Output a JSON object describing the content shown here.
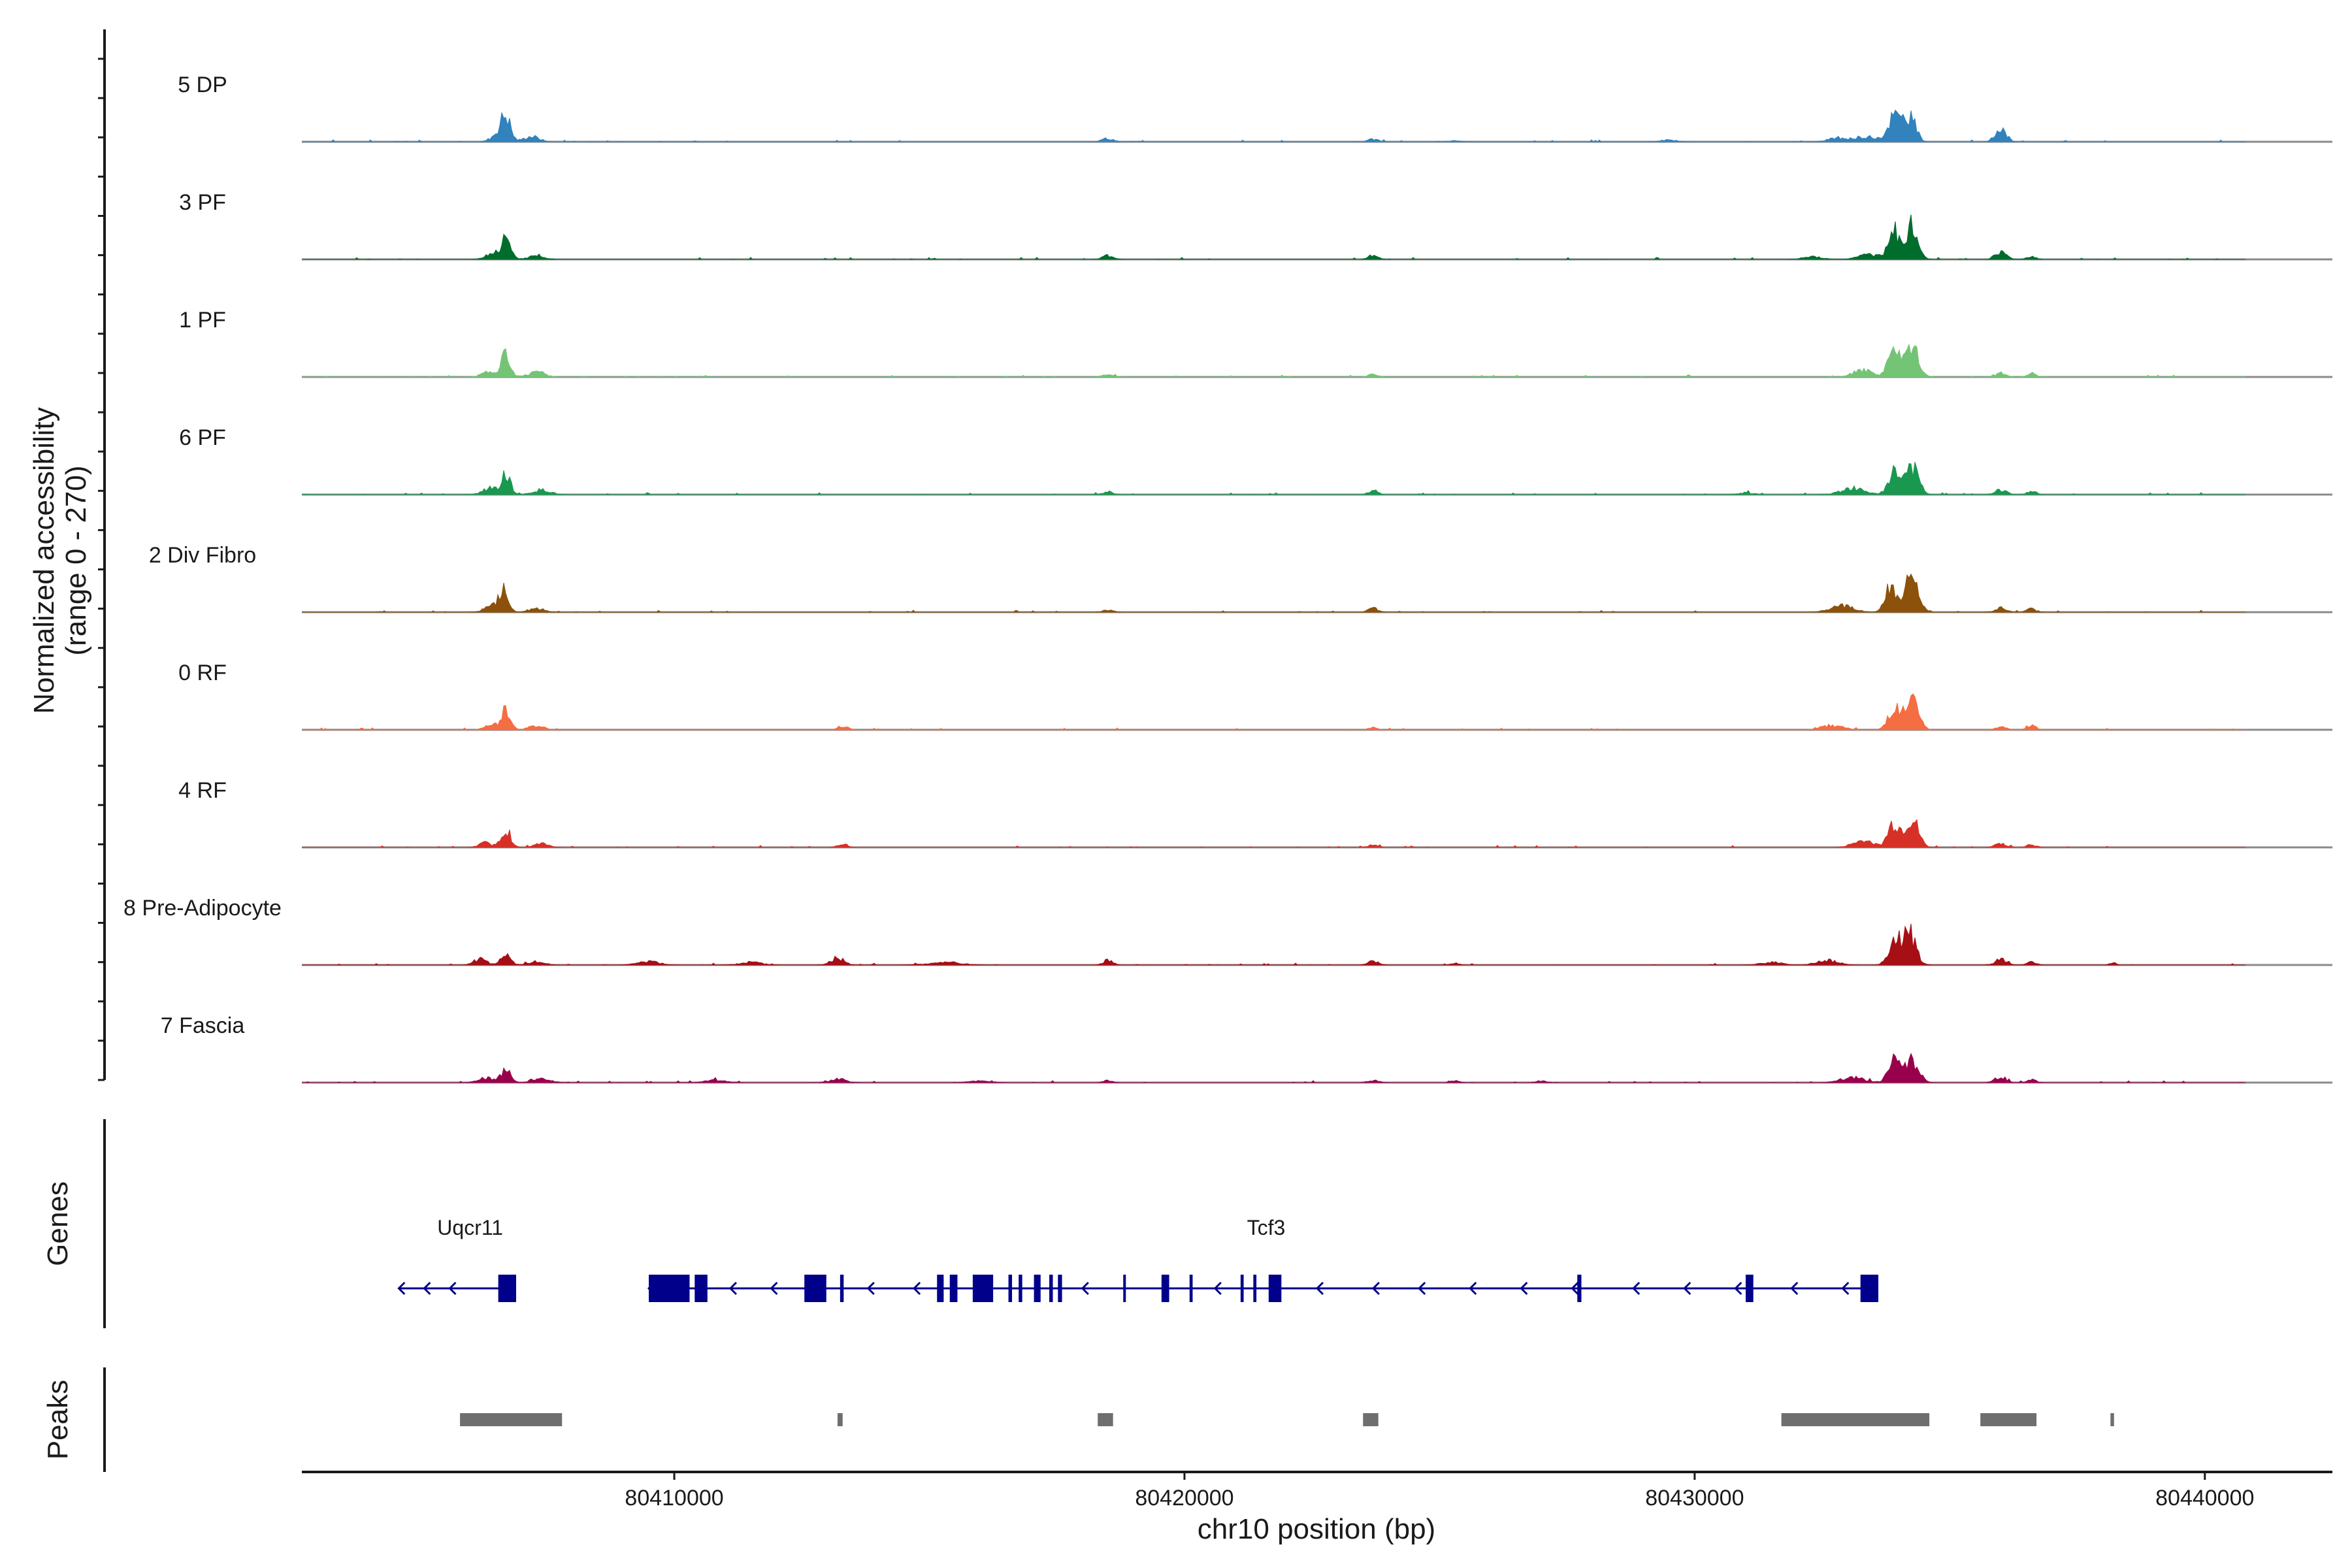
{
  "chart_data": {
    "type": "area",
    "title": "",
    "ylabel_line1": "Normalized accessibility",
    "ylabel_line2": "(range 0 - 270)",
    "yrange": [
      0,
      270
    ],
    "genes_label": "Genes",
    "peaks_label": "Peaks",
    "xlabel": "chr10 position (bp)",
    "xlim": [
      80402700,
      80442500
    ],
    "xticks": [
      80410000,
      80420000,
      80430000,
      80440000
    ],
    "xtick_labels": [
      "80410000",
      "80420000",
      "80430000",
      "80440000"
    ],
    "track_start": 80402700,
    "track_end": 80440800,
    "tracks": [
      {
        "name": "5 DP",
        "color": "#3182bd",
        "peaks": [
          [
            80406700,
            52,
            90
          ],
          [
            80406550,
            18,
            130
          ],
          [
            80407200,
            12,
            150
          ],
          [
            80418500,
            7,
            110
          ],
          [
            80423700,
            6,
            90
          ],
          [
            80433400,
            10,
            250
          ],
          [
            80433900,
            54,
            110
          ],
          [
            80434200,
            60,
            120
          ],
          [
            80432800,
            8,
            180
          ],
          [
            80436000,
            26,
            110
          ],
          [
            80429500,
            4,
            160
          ],
          [
            80425300,
            3,
            120
          ]
        ]
      },
      {
        "name": "3 PF",
        "color": "#006d2c",
        "peaks": [
          [
            80406700,
            42,
            90
          ],
          [
            80406450,
            14,
            140
          ],
          [
            80407300,
            8,
            160
          ],
          [
            80418500,
            8,
            100
          ],
          [
            80423700,
            10,
            90
          ],
          [
            80432300,
            6,
            180
          ],
          [
            80433400,
            10,
            200
          ],
          [
            80433900,
            60,
            110
          ],
          [
            80434250,
            72,
            120
          ],
          [
            80436000,
            16,
            110
          ],
          [
            80436600,
            6,
            90
          ]
        ]
      },
      {
        "name": "1 PF",
        "color": "#74c476",
        "peaks": [
          [
            80406700,
            46,
            90
          ],
          [
            80406400,
            12,
            140
          ],
          [
            80407300,
            10,
            160
          ],
          [
            80418500,
            6,
            100
          ],
          [
            80423700,
            6,
            90
          ],
          [
            80433300,
            16,
            180
          ],
          [
            80433900,
            54,
            110
          ],
          [
            80434250,
            70,
            130
          ],
          [
            80436000,
            8,
            110
          ],
          [
            80436600,
            8,
            90
          ]
        ]
      },
      {
        "name": "6 PF",
        "color": "#1a9850",
        "peaks": [
          [
            80406700,
            40,
            90
          ],
          [
            80406400,
            14,
            150
          ],
          [
            80407400,
            10,
            170
          ],
          [
            80418500,
            6,
            100
          ],
          [
            80423700,
            9,
            90
          ],
          [
            80433100,
            14,
            220
          ],
          [
            80433900,
            48,
            110
          ],
          [
            80434250,
            60,
            130
          ],
          [
            80436000,
            10,
            110
          ],
          [
            80436600,
            6,
            90
          ],
          [
            80431000,
            4,
            150
          ]
        ]
      },
      {
        "name": "2 Div Fibro",
        "color": "#8c510a",
        "peaks": [
          [
            80406650,
            44,
            90
          ],
          [
            80406400,
            12,
            140
          ],
          [
            80407300,
            8,
            160
          ],
          [
            80418500,
            5,
            100
          ],
          [
            80423700,
            10,
            90
          ],
          [
            80432900,
            14,
            220
          ],
          [
            80433850,
            58,
            110
          ],
          [
            80434250,
            74,
            130
          ],
          [
            80436000,
            10,
            110
          ],
          [
            80436600,
            8,
            90
          ]
        ]
      },
      {
        "name": "0 RF",
        "color": "#f46d43",
        "peaks": [
          [
            80406700,
            44,
            90
          ],
          [
            80406400,
            10,
            140
          ],
          [
            80407300,
            8,
            160
          ],
          [
            80413300,
            8,
            100
          ],
          [
            80423700,
            5,
            90
          ],
          [
            80432700,
            10,
            200
          ],
          [
            80433900,
            48,
            110
          ],
          [
            80434250,
            62,
            130
          ],
          [
            80436000,
            6,
            110
          ],
          [
            80436600,
            9,
            90
          ]
        ]
      },
      {
        "name": "4 RF",
        "color": "#d73027",
        "peaks": [
          [
            80406700,
            42,
            90
          ],
          [
            80406300,
            10,
            120
          ],
          [
            80407400,
            8,
            140
          ],
          [
            80413300,
            6,
            100
          ],
          [
            80423700,
            7,
            90
          ],
          [
            80433300,
            14,
            200
          ],
          [
            80433900,
            52,
            110
          ],
          [
            80434250,
            62,
            130
          ],
          [
            80436000,
            9,
            110
          ],
          [
            80436600,
            6,
            90
          ]
        ]
      },
      {
        "name": "8 Pre-Adipocyte",
        "color": "#a50f15",
        "peaks": [
          [
            80406700,
            28,
            90
          ],
          [
            80406200,
            14,
            120
          ],
          [
            80407300,
            8,
            150
          ],
          [
            80409500,
            8,
            200
          ],
          [
            80411500,
            6,
            200
          ],
          [
            80413200,
            16,
            120
          ],
          [
            80415300,
            6,
            300
          ],
          [
            80418500,
            10,
            90
          ],
          [
            80423700,
            8,
            100
          ],
          [
            80425300,
            4,
            80
          ],
          [
            80431500,
            6,
            200
          ],
          [
            80432600,
            10,
            200
          ],
          [
            80433900,
            50,
            110
          ],
          [
            80434200,
            70,
            130
          ],
          [
            80436000,
            12,
            110
          ],
          [
            80436600,
            6,
            90
          ],
          [
            80438200,
            5,
            60
          ]
        ]
      },
      {
        "name": "7 Fascia",
        "color": "#99004c",
        "peaks": [
          [
            80406700,
            30,
            90
          ],
          [
            80406300,
            10,
            150
          ],
          [
            80407400,
            8,
            170
          ],
          [
            80410800,
            5,
            200
          ],
          [
            80413200,
            8,
            150
          ],
          [
            80416000,
            4,
            200
          ],
          [
            80418500,
            5,
            90
          ],
          [
            80423700,
            5,
            100
          ],
          [
            80425300,
            4,
            80
          ],
          [
            80427000,
            4,
            100
          ],
          [
            80433100,
            12,
            220
          ],
          [
            80433900,
            48,
            110
          ],
          [
            80434250,
            52,
            130
          ],
          [
            80436000,
            12,
            110
          ],
          [
            80436600,
            6,
            90
          ]
        ]
      }
    ],
    "genes": [
      {
        "name": "Uqcr11",
        "label_x": 80406000,
        "start": 80404600,
        "end": 80406900,
        "strand": "-",
        "exons": [
          [
            80406550,
            80406900
          ]
        ]
      },
      {
        "name": "Tcf3",
        "label_x": 80421600,
        "start": 80409500,
        "end": 80433600,
        "strand": "-",
        "exons": [
          [
            80409500,
            80410300
          ],
          [
            80410400,
            80410650
          ],
          [
            80412550,
            80412980
          ],
          [
            80413250,
            80413320
          ],
          [
            80415150,
            80415280
          ],
          [
            80415400,
            80415550
          ],
          [
            80415850,
            80416250
          ],
          [
            80416550,
            80416620
          ],
          [
            80416750,
            80416820
          ],
          [
            80417050,
            80417180
          ],
          [
            80417350,
            80417420
          ],
          [
            80417520,
            80417600
          ],
          [
            80418800,
            80418850
          ],
          [
            80419550,
            80419700
          ],
          [
            80420100,
            80420160
          ],
          [
            80421100,
            80421160
          ],
          [
            80421350,
            80421410
          ],
          [
            80421650,
            80421900
          ],
          [
            80427700,
            80427780
          ],
          [
            80431000,
            80431150
          ],
          [
            80433250,
            80433600
          ]
        ],
        "arrows": [
          80411100,
          80411900,
          80413800,
          80414700,
          80418000,
          80420600,
          80422600,
          80423700,
          80424600,
          80425600,
          80426600,
          80427600,
          80428800,
          80429800,
          80430800,
          80431900,
          80432900
        ]
      }
    ],
    "uqcr11_arrows": [
      80405100,
      80405600
    ],
    "peaks": [
      [
        80405800,
        80407800
      ],
      [
        80413200,
        80413300
      ],
      [
        80418300,
        80418600
      ],
      [
        80423500,
        80423800
      ],
      [
        80431700,
        80434600
      ],
      [
        80435600,
        80436700
      ],
      [
        80438150,
        80438220
      ]
    ]
  },
  "colors": {
    "gene": "#00008b",
    "peak": "#6e6e6e",
    "baseline": "#8a8a8a",
    "axis": "#1a1a1a"
  }
}
